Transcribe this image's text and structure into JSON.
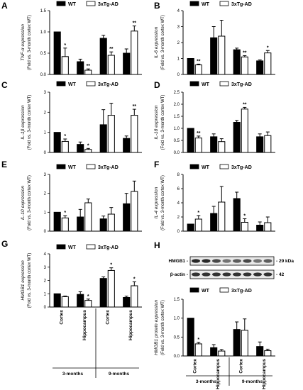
{
  "colors": {
    "wt": "#000000",
    "tg": "#ffffff",
    "axis": "#000000"
  },
  "legend": {
    "wt": "WT",
    "tg": "3xTg-AD"
  },
  "blot": {
    "hmgb1_label": "HMGB1 -",
    "actin_label": "β-actin -",
    "kda_29": "- 29 kDa",
    "kda_42": "- 42"
  },
  "x_axis": {
    "categories": [
      "Cortex",
      "Hippocampus",
      "Cortex",
      "Hippocampus"
    ],
    "groups": [
      "3-months",
      "9-months"
    ]
  },
  "chart_data": [
    {
      "panel": "A",
      "type": "bar",
      "ylabel": "TNF-α expression",
      "ylabel2": "(Fold vs. 3-month cortex WT)",
      "ylim": [
        0,
        1.5
      ],
      "yticks": [
        "0.0",
        "0.5",
        "1.0",
        "1.5"
      ],
      "series": [
        {
          "name": "WT",
          "values": [
            1.0,
            0.3,
            0.85,
            0.5
          ],
          "err": [
            0,
            0.06,
            0.07,
            0.1
          ]
        },
        {
          "name": "3xTg-AD",
          "values": [
            0.42,
            0.1,
            0.45,
            1.02
          ],
          "err": [
            0.2,
            0.03,
            0.08,
            0.12
          ]
        }
      ],
      "sig": [
        {
          "i": 0,
          "s": "1",
          "t": "*"
        },
        {
          "i": 1,
          "s": "1",
          "t": "**"
        },
        {
          "i": 2,
          "s": "1",
          "t": "**"
        },
        {
          "i": 3,
          "s": "1",
          "t": "**"
        }
      ]
    },
    {
      "panel": "B",
      "type": "bar",
      "ylabel": "IL-6 expression",
      "ylabel2": "(Fold vs. 3-month cortex WT)",
      "ylim": [
        0,
        4
      ],
      "yticks": [
        "0",
        "1",
        "2",
        "3",
        "4"
      ],
      "series": [
        {
          "name": "WT",
          "values": [
            1.0,
            2.3,
            1.55,
            0.85
          ],
          "err": [
            0,
            0.7,
            0.1,
            0.06
          ]
        },
        {
          "name": "3xTg-AD",
          "values": [
            0.6,
            2.4,
            1.1,
            1.35
          ],
          "err": [
            0.05,
            1.0,
            0.08,
            0.15
          ]
        }
      ],
      "sig": [
        {
          "i": 0,
          "s": "1",
          "t": "**"
        },
        {
          "i": 2,
          "s": "1",
          "t": "**"
        },
        {
          "i": 3,
          "s": "1",
          "t": "*"
        }
      ]
    },
    {
      "panel": "C",
      "type": "bar",
      "ylabel": "IL-1β expression",
      "ylabel2": "(Fold vs. 3-month cortex WT)",
      "ylim": [
        0,
        3
      ],
      "yticks": [
        "0",
        "1",
        "2",
        "3"
      ],
      "series": [
        {
          "name": "WT",
          "values": [
            1.0,
            0.4,
            1.38,
            0.7
          ],
          "err": [
            0,
            0.12,
            0.75,
            0.12
          ]
        },
        {
          "name": "3xTg-AD",
          "values": [
            0.55,
            0.15,
            1.85,
            1.85
          ],
          "err": [
            0.12,
            0.05,
            0.6,
            0.3
          ]
        }
      ],
      "sig": [
        {
          "i": 0,
          "s": "1",
          "t": "*"
        },
        {
          "i": 1,
          "s": "1",
          "t": "*"
        },
        {
          "i": 3,
          "s": "1",
          "t": "**"
        }
      ]
    },
    {
      "panel": "D",
      "type": "bar",
      "ylabel": "IL-18 expression",
      "ylabel2": "(Fold vs. 3-month cortex WT)",
      "ylim": [
        0,
        2.5
      ],
      "yticks": [
        "0.0",
        "0.5",
        "1.0",
        "1.5",
        "2.0",
        "2.5"
      ],
      "series": [
        {
          "name": "WT",
          "values": [
            1.0,
            0.65,
            1.25,
            0.65
          ],
          "err": [
            0,
            0.12,
            0.08,
            0.12
          ]
        },
        {
          "name": "3xTg-AD",
          "values": [
            0.6,
            0.45,
            1.8,
            0.7
          ],
          "err": [
            0.08,
            0.12,
            0.07,
            0.15
          ]
        }
      ],
      "sig": [
        {
          "i": 0,
          "s": "1",
          "t": "**"
        },
        {
          "i": 2,
          "s": "1",
          "t": "**"
        }
      ]
    },
    {
      "panel": "E",
      "type": "bar",
      "ylabel": "IL-10 expression",
      "ylabel2": "(Fold vs. 3-month cortex WT)",
      "ylim": [
        0,
        3
      ],
      "yticks": [
        "0",
        "1",
        "2",
        "3"
      ],
      "series": [
        {
          "name": "WT",
          "values": [
            1.0,
            0.75,
            0.65,
            1.45
          ],
          "err": [
            0,
            0.4,
            0.15,
            0.55
          ]
        },
        {
          "name": "3xTg-AD",
          "values": [
            0.7,
            1.5,
            0.9,
            2.1
          ],
          "err": [
            0.12,
            0.2,
            0.35,
            0.55
          ]
        }
      ],
      "sig": [
        {
          "i": 0,
          "s": "1",
          "t": "*"
        }
      ]
    },
    {
      "panel": "F",
      "type": "bar",
      "ylabel": "IL-4 expression",
      "ylabel2": "(Fold vs. 3-month cortex WT)",
      "ylim": [
        0,
        8
      ],
      "yticks": [
        "0",
        "2",
        "4",
        "6",
        "8"
      ],
      "series": [
        {
          "name": "WT",
          "values": [
            1.0,
            2.5,
            4.6,
            0.85
          ],
          "err": [
            0,
            1.0,
            0.9,
            0.45
          ]
        },
        {
          "name": "3xTg-AD",
          "values": [
            1.7,
            4.1,
            1.25,
            1.2
          ],
          "err": [
            0.5,
            2.2,
            0.5,
            0.8
          ]
        }
      ],
      "sig": [
        {
          "i": 0,
          "s": "1",
          "t": "*"
        },
        {
          "i": 2,
          "s": "1",
          "t": "*"
        }
      ]
    },
    {
      "panel": "G",
      "type": "bar",
      "ylabel": "HMGB1 expression",
      "ylabel2": "(Fold vs. 3-month cortex WT)",
      "ylim": [
        0,
        4
      ],
      "yticks": [
        "0",
        "1",
        "2",
        "3",
        "4"
      ],
      "series": [
        {
          "name": "WT",
          "values": [
            1.0,
            0.95,
            2.15,
            0.72
          ],
          "err": [
            0,
            0.2,
            0.12,
            0.1
          ]
        },
        {
          "name": "3xTg-AD",
          "values": [
            0.78,
            0.5,
            2.75,
            1.6
          ],
          "err": [
            0.05,
            0.1,
            0.2,
            0.3
          ]
        }
      ],
      "sig": [
        {
          "i": 1,
          "s": "1",
          "t": "*"
        },
        {
          "i": 2,
          "s": "1",
          "t": "*"
        },
        {
          "i": 3,
          "s": "1",
          "t": "*"
        }
      ]
    },
    {
      "panel": "H",
      "type": "bar",
      "ylabel": "HMGB1 protein expression",
      "ylabel2": "(Fold vs. 3-month cortex WT)",
      "ylim": [
        0,
        1.5
      ],
      "yticks": [
        "0.0",
        "0.5",
        "1.0",
        "1.5"
      ],
      "series": [
        {
          "name": "WT",
          "values": [
            1.0,
            0.22,
            0.7,
            0.25
          ],
          "err": [
            0,
            0.08,
            0.2,
            0.12
          ]
        },
        {
          "name": "3xTg-AD",
          "values": [
            0.32,
            0.13,
            0.68,
            0.14
          ],
          "err": [
            0.04,
            0.04,
            0.3,
            0.04
          ]
        }
      ],
      "sig": [
        {
          "i": 0,
          "s": "1",
          "t": "*"
        }
      ]
    }
  ]
}
